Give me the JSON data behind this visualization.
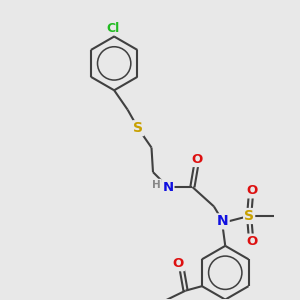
{
  "bg_color": "#e8e8e8",
  "bond_color": "#404040",
  "bond_width": 1.5,
  "atom_colors": {
    "Cl": "#22bb22",
    "S": "#c8a000",
    "N": "#1010e0",
    "O": "#dd1010",
    "H": "#888888",
    "C": "#404040"
  },
  "font_size": 8.5,
  "fig_width": 3.0,
  "fig_height": 3.0,
  "dpi": 100,
  "xlim": [
    0,
    10
  ],
  "ylim": [
    0,
    10
  ]
}
